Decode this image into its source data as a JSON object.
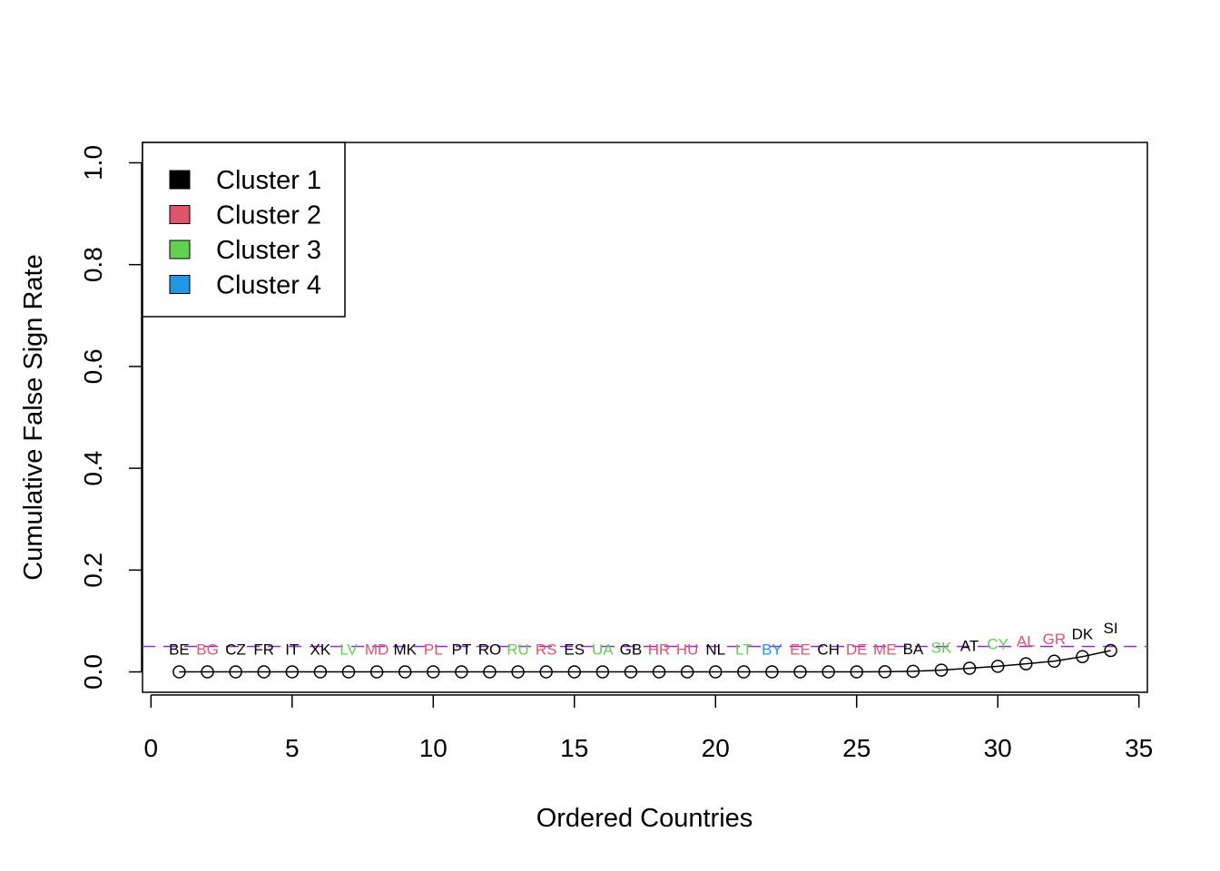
{
  "chart_data": {
    "type": "line",
    "title": "",
    "xlabel": "Ordered Countries",
    "ylabel": "Cumulative False Sign Rate",
    "xlim": [
      -0.3,
      35.3
    ],
    "ylim": [
      -0.04,
      1.04
    ],
    "xticks": [
      "0",
      "5",
      "10",
      "15",
      "20",
      "25",
      "30",
      "35"
    ],
    "yticks": [
      "0.0",
      "0.2",
      "0.4",
      "0.6",
      "0.8",
      "1.0"
    ],
    "threshold": {
      "value": 0.05,
      "color": "#A020F0",
      "style": "dashed"
    },
    "legend": {
      "position": "top-left",
      "items": [
        {
          "label": "Cluster 1",
          "color": "#000000"
        },
        {
          "label": "Cluster 2",
          "color": "#DF536B"
        },
        {
          "label": "Cluster 3",
          "color": "#61D04F"
        },
        {
          "label": "Cluster 4",
          "color": "#2297E6"
        }
      ]
    },
    "points": [
      {
        "x": 1,
        "y": 0.0,
        "label": "BE",
        "cluster": 1
      },
      {
        "x": 2,
        "y": 0.0,
        "label": "BG",
        "cluster": 2
      },
      {
        "x": 3,
        "y": 0.0,
        "label": "CZ",
        "cluster": 1
      },
      {
        "x": 4,
        "y": 0.0,
        "label": "FR",
        "cluster": 1
      },
      {
        "x": 5,
        "y": 0.0,
        "label": "IT",
        "cluster": 1
      },
      {
        "x": 6,
        "y": 0.0,
        "label": "XK",
        "cluster": 1
      },
      {
        "x": 7,
        "y": 0.0,
        "label": "LV",
        "cluster": 3
      },
      {
        "x": 8,
        "y": 0.0,
        "label": "MD",
        "cluster": 2
      },
      {
        "x": 9,
        "y": 0.0,
        "label": "MK",
        "cluster": 1
      },
      {
        "x": 10,
        "y": 0.0,
        "label": "PL",
        "cluster": 2
      },
      {
        "x": 11,
        "y": 0.0,
        "label": "PT",
        "cluster": 1
      },
      {
        "x": 12,
        "y": 0.0,
        "label": "RO",
        "cluster": 1
      },
      {
        "x": 13,
        "y": 0.0,
        "label": "RU",
        "cluster": 3
      },
      {
        "x": 14,
        "y": 0.0,
        "label": "RS",
        "cluster": 2
      },
      {
        "x": 15,
        "y": 0.0,
        "label": "ES",
        "cluster": 1
      },
      {
        "x": 16,
        "y": 0.0,
        "label": "UA",
        "cluster": 3
      },
      {
        "x": 17,
        "y": 0.0,
        "label": "GB",
        "cluster": 1
      },
      {
        "x": 18,
        "y": 0.0,
        "label": "HR",
        "cluster": 2
      },
      {
        "x": 19,
        "y": 0.0,
        "label": "HU",
        "cluster": 2
      },
      {
        "x": 20,
        "y": 0.0,
        "label": "NL",
        "cluster": 1
      },
      {
        "x": 21,
        "y": 0.0,
        "label": "LT",
        "cluster": 3
      },
      {
        "x": 22,
        "y": 0.0,
        "label": "BY",
        "cluster": 4
      },
      {
        "x": 23,
        "y": 0.0,
        "label": "EE",
        "cluster": 2
      },
      {
        "x": 24,
        "y": 0.0,
        "label": "CH",
        "cluster": 1
      },
      {
        "x": 25,
        "y": 0.0,
        "label": "DE",
        "cluster": 2
      },
      {
        "x": 26,
        "y": 0.0003,
        "label": "ME",
        "cluster": 2
      },
      {
        "x": 27,
        "y": 0.0012,
        "label": "BA",
        "cluster": 1
      },
      {
        "x": 28,
        "y": 0.0035,
        "label": "SK",
        "cluster": 3
      },
      {
        "x": 29,
        "y": 0.0072,
        "label": "AT",
        "cluster": 1
      },
      {
        "x": 30,
        "y": 0.011,
        "label": "CY",
        "cluster": 3
      },
      {
        "x": 31,
        "y": 0.016,
        "label": "AL",
        "cluster": 2
      },
      {
        "x": 32,
        "y": 0.021,
        "label": "GR",
        "cluster": 2
      },
      {
        "x": 33,
        "y": 0.03,
        "label": "DK",
        "cluster": 1
      },
      {
        "x": 34,
        "y": 0.042,
        "label": "SI",
        "cluster": 1
      }
    ]
  }
}
